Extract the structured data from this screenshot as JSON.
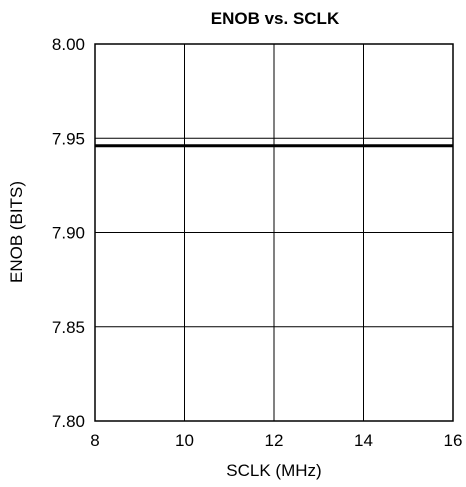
{
  "chart_data": {
    "type": "line",
    "title": "ENOB vs. SCLK",
    "xlabel": "SCLK (MHz)",
    "ylabel": "ENOB (BITS)",
    "xlim": [
      8,
      16
    ],
    "ylim": [
      7.8,
      8.0
    ],
    "x_ticks": [
      "8",
      "10",
      "12",
      "14",
      "16"
    ],
    "y_ticks": [
      "7.80",
      "7.85",
      "7.90",
      "7.95",
      "8.00"
    ],
    "grid": true,
    "series": [
      {
        "x": [
          8,
          10,
          12,
          14,
          16
        ],
        "y": [
          7.946,
          7.946,
          7.946,
          7.946,
          7.946
        ]
      }
    ]
  }
}
